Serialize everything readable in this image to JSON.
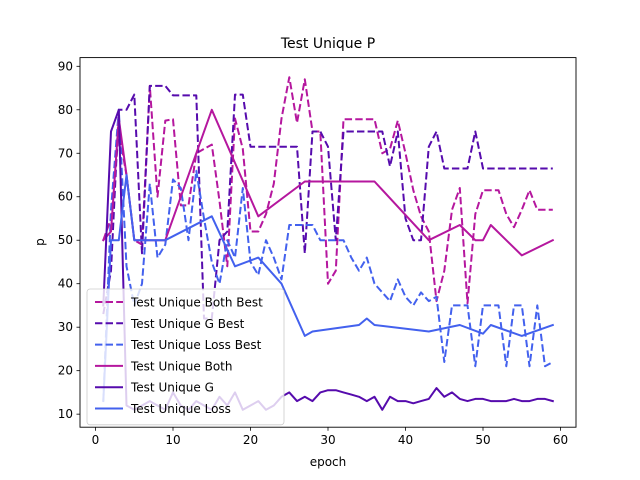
{
  "chart_data": {
    "type": "line",
    "title": "Test Unique P",
    "xlabel": "epoch",
    "ylabel": "p",
    "xlim": [
      -2,
      62
    ],
    "ylim": [
      7,
      92
    ],
    "xticks": [
      0,
      10,
      20,
      30,
      40,
      50,
      60
    ],
    "yticks": [
      10,
      20,
      30,
      40,
      50,
      60,
      70,
      80,
      90
    ],
    "grid": false,
    "legend_position": "lower-left",
    "series": [
      {
        "name": "Test Unique Both Best",
        "color": "#b5179e",
        "dash": true,
        "x": [
          1,
          2,
          3,
          4,
          5,
          6,
          7,
          8,
          9,
          10,
          11,
          12,
          13,
          14,
          15,
          16,
          17,
          18,
          19,
          20,
          21,
          22,
          23,
          24,
          25,
          26,
          27,
          28,
          29,
          30,
          31,
          32,
          33,
          34,
          35,
          36,
          37,
          38,
          39,
          40,
          41,
          42,
          43,
          44,
          45,
          46,
          47,
          48,
          49,
          50,
          51,
          52,
          53,
          54,
          55,
          56,
          57,
          58,
          59
        ],
        "y": [
          50,
          55,
          75,
          65,
          50,
          49,
          85.5,
          60,
          77.5,
          77.8,
          58,
          58,
          70,
          71,
          72,
          59,
          44,
          78,
          71,
          52,
          52,
          56,
          63,
          78,
          87.5,
          77,
          87,
          75,
          75,
          40,
          43,
          77.8,
          77.8,
          77.8,
          77.8,
          77.8,
          70,
          71,
          77.5,
          70,
          61.5,
          55.5,
          52,
          36,
          43,
          57,
          62,
          35.5,
          56,
          61.5,
          61.5,
          61.5,
          56,
          53,
          57,
          61.5,
          57,
          57,
          57
        ]
      },
      {
        "name": "Test Unique G Best",
        "color": "#560bad",
        "dash": true,
        "x": [
          1,
          2,
          3,
          4,
          5,
          6,
          7,
          8,
          9,
          10,
          11,
          12,
          13,
          14,
          15,
          16,
          17,
          18,
          19,
          20,
          21,
          22,
          23,
          24,
          25,
          26,
          27,
          28,
          29,
          30,
          31,
          32,
          33,
          34,
          35,
          36,
          37,
          38,
          39,
          40,
          41,
          42,
          43,
          44,
          45,
          46,
          47,
          48,
          49,
          50,
          51,
          52,
          53,
          54,
          55,
          56,
          57,
          58,
          59
        ],
        "y": [
          33,
          43,
          80,
          80,
          83.5,
          47,
          85.5,
          85.5,
          85.5,
          83.3,
          83.3,
          83.3,
          83.3,
          32,
          32,
          50,
          52,
          83.5,
          83.5,
          71.5,
          71.5,
          71.5,
          71.5,
          71.5,
          71.5,
          71.5,
          47,
          75,
          75,
          71.5,
          50,
          75,
          75,
          75,
          75,
          75,
          75,
          67,
          75,
          55,
          50,
          50,
          71.5,
          75,
          66.5,
          66.5,
          66.5,
          66.5,
          75,
          66.5,
          66.5,
          66.5,
          66.5,
          66.5,
          66.5,
          66.5,
          66.5,
          66.5,
          66.5
        ]
      },
      {
        "name": "Test Unique Loss Best",
        "color": "#4361ee",
        "dash": true,
        "x": [
          1,
          2,
          3,
          4,
          5,
          6,
          7,
          8,
          9,
          10,
          11,
          12,
          13,
          14,
          15,
          16,
          17,
          18,
          19,
          20,
          21,
          22,
          23,
          24,
          25,
          26,
          27,
          28,
          29,
          30,
          31,
          32,
          33,
          34,
          35,
          36,
          37,
          38,
          39,
          40,
          41,
          42,
          43,
          44,
          45,
          46,
          47,
          48,
          49,
          50,
          51,
          52,
          53,
          54,
          55,
          56,
          57,
          58,
          59
        ],
        "y": [
          13,
          57,
          80,
          44,
          35,
          40,
          63,
          46,
          49,
          64,
          62,
          50,
          66,
          55,
          45,
          40,
          50,
          46,
          62,
          45,
          42,
          50,
          46,
          41,
          53.5,
          53.5,
          53.5,
          53.5,
          50,
          50,
          50,
          50,
          46,
          43,
          46,
          40,
          38,
          36,
          41,
          37,
          35,
          38,
          36,
          37,
          22,
          35,
          35,
          35,
          21,
          35,
          35,
          35,
          21,
          35,
          35,
          21,
          35,
          21,
          22
        ]
      },
      {
        "name": "Test Unique Both",
        "color": "#b5179e",
        "dash": false,
        "x": [
          1,
          2,
          3,
          4,
          5,
          6,
          9,
          15,
          21,
          27,
          36,
          43,
          47,
          49,
          50,
          51,
          55,
          59
        ],
        "y": [
          50,
          52,
          78,
          65,
          50,
          50,
          50,
          80,
          55.5,
          63.5,
          63.5,
          50,
          53.5,
          50,
          50,
          53.5,
          46.5,
          50
        ]
      },
      {
        "name": "Test Unique G",
        "color": "#560bad",
        "dash": false,
        "x": [
          1,
          2,
          3,
          4,
          5,
          6,
          7,
          8,
          9,
          10,
          11,
          12,
          13,
          14,
          15,
          16,
          17,
          18,
          19,
          20,
          21,
          22,
          23,
          24,
          25,
          26,
          27,
          28,
          29,
          30,
          31,
          32,
          33,
          34,
          35,
          36,
          37,
          38,
          39,
          40,
          41,
          42,
          43,
          44,
          45,
          46,
          47,
          48,
          49,
          50,
          51,
          52,
          53,
          54,
          55,
          56,
          57,
          58,
          59
        ],
        "y": [
          35,
          75,
          80,
          12,
          11,
          12,
          13,
          12,
          11,
          15,
          12,
          11,
          13,
          12,
          11,
          14,
          12,
          15,
          11,
          12,
          13,
          11,
          12,
          14,
          15,
          13,
          14,
          13,
          15,
          15.5,
          15.5,
          15,
          14.5,
          14,
          13,
          14,
          11,
          14,
          13,
          13,
          12.5,
          13,
          13.5,
          16,
          14,
          15,
          13.5,
          13,
          13.5,
          13.5,
          13,
          13,
          13,
          13.5,
          13,
          13,
          13.5,
          13.5,
          13
        ]
      },
      {
        "name": "Test Unique Loss",
        "color": "#4361ee",
        "dash": false,
        "x": [
          1,
          2,
          3,
          4,
          5,
          6,
          9,
          15,
          18,
          21,
          24,
          27,
          28,
          34,
          35,
          36,
          43,
          47,
          50,
          51,
          55,
          59
        ],
        "y": [
          13,
          50,
          50,
          65,
          50,
          50,
          50,
          55.5,
          44,
          46,
          40,
          28,
          29,
          30.5,
          32,
          30.5,
          29,
          30.5,
          28.5,
          30.5,
          28,
          30.5
        ]
      }
    ]
  }
}
